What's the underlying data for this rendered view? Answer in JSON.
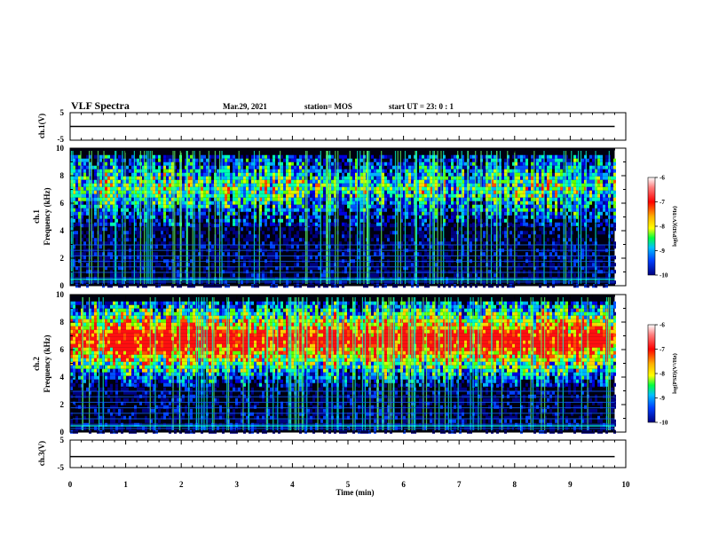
{
  "header": {
    "title": "VLF Spectra",
    "date": "Mar.29, 2021",
    "station": "station= MOS",
    "start": "start  UT  =   23: 0   : 1"
  },
  "x_axis": {
    "label": "Time  (min)",
    "range": [
      0,
      10
    ],
    "ticks": [
      "0",
      "1",
      "2",
      "3",
      "4",
      "5",
      "6",
      "7",
      "8",
      "9",
      "10"
    ]
  },
  "colorbar": {
    "label": "log(PSD)(V²/Hz)",
    "ticks": [
      "-6",
      "-7",
      "-8",
      "-9",
      "-10"
    ],
    "colors": [
      "#000000",
      "#0000c8",
      "#0050ff",
      "#00c8ff",
      "#00ff80",
      "#80ff00",
      "#ffff00",
      "#ff8000",
      "#ff2000",
      "#ffffff"
    ]
  },
  "chart_data": [
    {
      "type": "line",
      "panel": "ch1-waveform",
      "ylabel": "ch.1(V)",
      "ylim": [
        -5,
        5
      ],
      "yticks": [
        "5",
        "-5"
      ],
      "xlim": [
        0,
        10
      ],
      "series": [
        {
          "x": [
            0,
            9.8
          ],
          "y": [
            0,
            0
          ]
        }
      ]
    },
    {
      "type": "heatmap",
      "panel": "ch1-spectrogram",
      "ylabel": "ch.1 Frequency (kHz)",
      "xlim": [
        0,
        10
      ],
      "ylim": [
        0,
        10
      ],
      "yticks": [
        "0",
        "2",
        "4",
        "6",
        "8",
        "10"
      ],
      "data_extent_min": 9.8,
      "band_khz": [
        4.5,
        9.5
      ],
      "level_range": [
        -10,
        -6
      ]
    },
    {
      "type": "heatmap",
      "panel": "ch2-spectrogram",
      "ylabel": "ch.2 Frequency (kHz)",
      "xlim": [
        0,
        10
      ],
      "ylim": [
        0,
        10
      ],
      "yticks": [
        "0",
        "2",
        "4",
        "6",
        "8",
        "10"
      ],
      "data_extent_min": 9.8,
      "band_khz": [
        3.5,
        9.5
      ],
      "level_range": [
        -10,
        -6
      ]
    },
    {
      "type": "line",
      "panel": "ch3-waveform",
      "ylabel": "ch.3(V)",
      "ylim": [
        -5,
        5
      ],
      "yticks": [
        "5",
        "-5"
      ],
      "xlim": [
        0,
        10
      ],
      "series": [
        {
          "x": [
            0,
            9.8
          ],
          "y": [
            -1,
            -1
          ]
        }
      ]
    }
  ]
}
